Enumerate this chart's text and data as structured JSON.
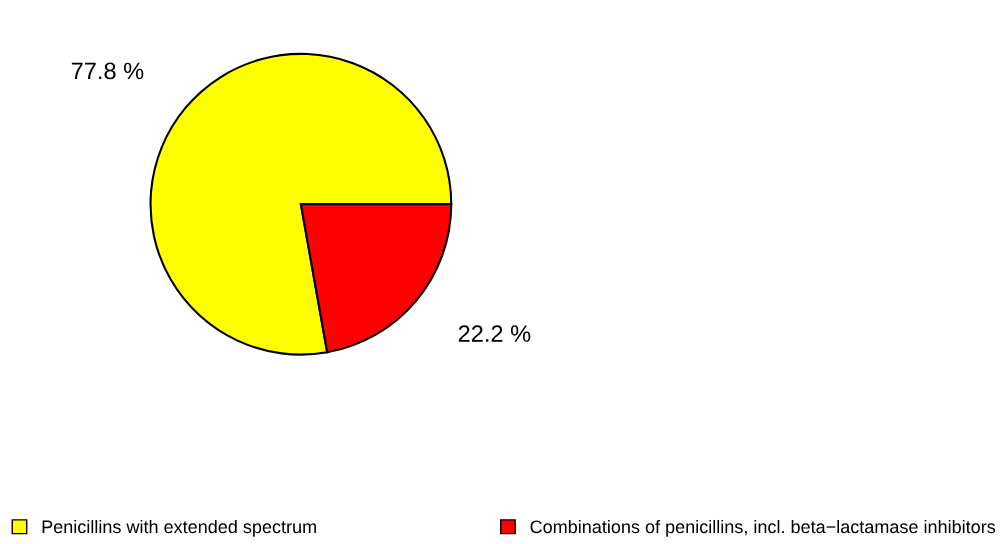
{
  "chart_data": {
    "type": "pie",
    "categories": [
      "Penicillins with extended spectrum",
      "Combinations of penicillins, incl. beta−lactamase inhibitors"
    ],
    "values": [
      77.8,
      22.2
    ],
    "colors": [
      "#ffff00",
      "#ff0000"
    ],
    "value_labels": [
      "77.8 %",
      "22.2 %"
    ],
    "legend": "bottom"
  }
}
